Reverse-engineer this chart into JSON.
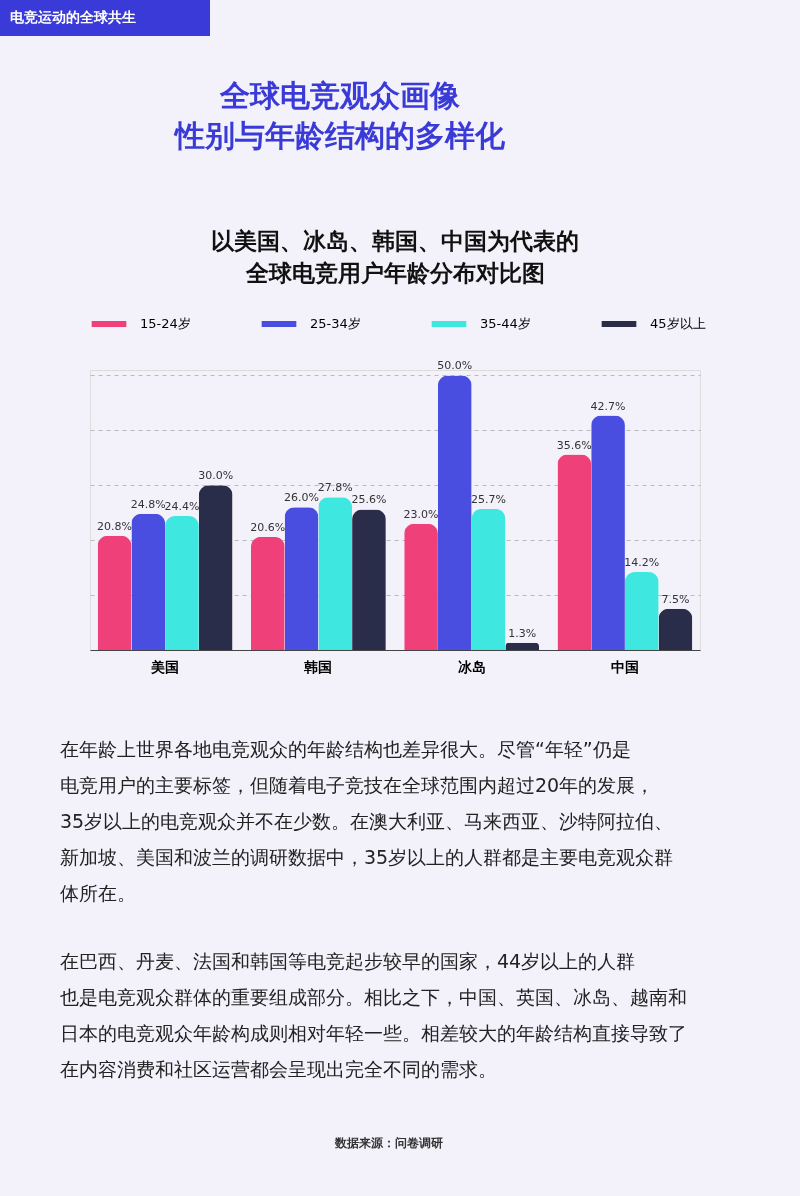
{
  "chart_data": {
    "type": "bar",
    "title": "以美国、冰岛、韩国、中国为代表的",
    "subtitle": "全球电竞用户年龄分布对比图",
    "categories": [
      "美国",
      "韩国",
      "冰岛",
      "中国"
    ],
    "series": [
      {
        "name": "15-24岁",
        "color": "#f0407a",
        "values": [
          20.8,
          20.6,
          23.0,
          35.6
        ],
        "value_labels": [
          "20.8%",
          "20.6%",
          "23.0%",
          "35.6%"
        ]
      },
      {
        "name": "25-34岁",
        "color": "#4a4ee0",
        "values": [
          24.8,
          26.0,
          50.0,
          42.7
        ],
        "value_labels": [
          "24.8%",
          "26.0%",
          "50.0%",
          "42.7%"
        ]
      },
      {
        "name": "35-44岁",
        "color": "#3ee8e0",
        "values": [
          24.4,
          27.8,
          25.7,
          14.2
        ],
        "value_labels": [
          "24.4%",
          "27.8%",
          "25.7%",
          "14.2%"
        ]
      },
      {
        "name": "45岁以上",
        "color": "#2a2d4a",
        "values": [
          30.0,
          25.6,
          1.3,
          7.5
        ],
        "value_labels": [
          "30.0%",
          "25.6%",
          "1.3%",
          "7.5%"
        ]
      }
    ],
    "ylim": [
      0,
      51
    ],
    "yticks": [
      {
        "value": 10,
        "label": null
      },
      {
        "value": 20,
        "label": null
      },
      {
        "value": 30,
        "label": null
      },
      {
        "value": 40,
        "label": null
      },
      {
        "value": 50,
        "label": null
      }
    ],
    "grid": "y",
    "legend": "top",
    "tick_labels": "x",
    "annotations": [
      "电竞运动的全球共生",
      "全球电竞观众画像",
      "性别与年龄结构的多样化",
      "在年龄上世界各地电竞观众的年龄结构也差异很大。尽管“年轻”仍是电竞用户的主要标签，但随着电子竞技在全球范围内超过20年的发展，35岁以上的电竞观众并不在少数。在澳大利亚、马来西亚、沙特阿拉伯、新加坡、美国和波兰的调研数据中，35岁以上的人群都是主要电竞观众群体所在。",
      "在巴西、丹麦、法国和韩国等电竞起步较早的国家，44岁以上的人群也是电竞观众群体的重要组成部分。相比之下，中国、英国、冰岛、越南和日本的电竞观众年龄构成则相对年轻一些。相差较大的年龄结构直接导致了在内容消费和社区运营都会呈现出完全不同的需求。",
      "数据来源：问卷调研"
    ]
  }
}
